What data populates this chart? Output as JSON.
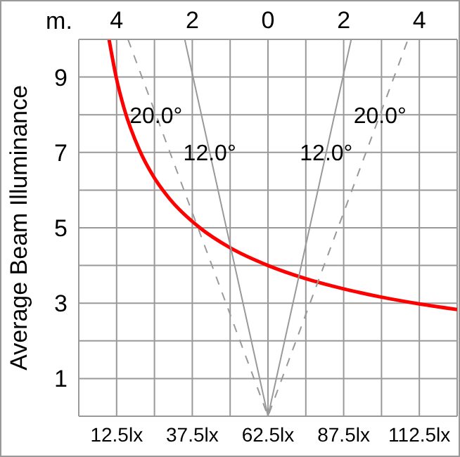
{
  "chart_data": {
    "type": "line",
    "ylabel": "Average Beam Illuminance",
    "x2label": "m.",
    "xlim": [
      0,
      125
    ],
    "xticks": [
      {
        "value": 0,
        "label": null
      },
      {
        "value": 12.5,
        "label": "12.5lx"
      },
      {
        "value": 25,
        "label": null
      },
      {
        "value": 37.5,
        "label": "37.5lx"
      },
      {
        "value": 50,
        "label": null
      },
      {
        "value": 62.5,
        "label": "62.5lx"
      },
      {
        "value": 75,
        "label": null
      },
      {
        "value": 87.5,
        "label": "87.5lx"
      },
      {
        "value": 100,
        "label": null
      },
      {
        "value": 112.5,
        "label": "112.5lx"
      },
      {
        "value": 125,
        "label": null
      }
    ],
    "x2lim": [
      -5,
      5
    ],
    "x2ticks": [
      {
        "value": -5,
        "label": null
      },
      {
        "value": -4,
        "label": "4"
      },
      {
        "value": -3,
        "label": null
      },
      {
        "value": -2,
        "label": "2"
      },
      {
        "value": -1,
        "label": null
      },
      0,
      {
        "value": 1,
        "label": null
      },
      2,
      {
        "value": 3,
        "label": null
      },
      4,
      {
        "value": 5,
        "label": null
      }
    ],
    "ylim": [
      0,
      10
    ],
    "yticks": [
      {
        "value": 0,
        "label": null
      },
      1,
      {
        "value": 2,
        "label": null
      },
      3,
      {
        "value": 4,
        "label": null
      },
      5,
      {
        "value": 6,
        "label": null
      },
      7,
      {
        "value": 8,
        "label": null
      },
      9,
      {
        "value": 10,
        "label": null
      }
    ],
    "grid": true,
    "legend": false,
    "marker": "none",
    "series": [
      {
        "color": "#ff0000",
        "line_style": "solid",
        "x": [
          10,
          12.5,
          15,
          20,
          25,
          30,
          40,
          50,
          62.5,
          75,
          87.5,
          100,
          112.5,
          125
        ],
        "values": [
          10,
          8.94,
          8.16,
          7.07,
          6.32,
          5.77,
          5,
          4.47,
          4,
          3.65,
          3.38,
          3.16,
          2.98,
          2.83
        ]
      },
      {
        "name": "20.0°",
        "color": "#999999",
        "line_style": "dashed",
        "axis": "x2",
        "x": [
          -3.7,
          0,
          3.7
        ],
        "values": [
          10,
          0,
          10
        ]
      },
      {
        "name": "12.0°",
        "color": "#999999",
        "line_style": "solid",
        "axis": "x2",
        "x": [
          -2.2,
          0,
          2.2
        ],
        "values": [
          10,
          0,
          10
        ]
      }
    ]
  }
}
